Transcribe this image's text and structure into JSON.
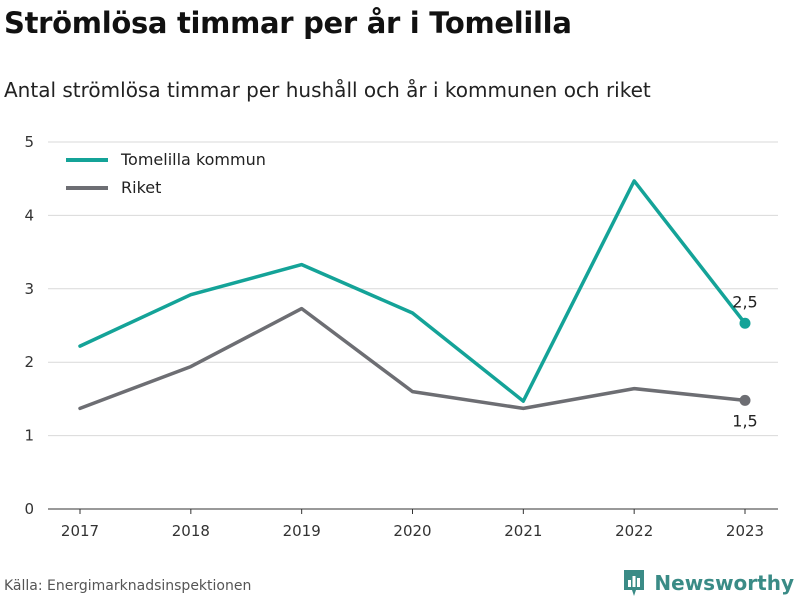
{
  "header": {
    "title": "Strömlösa timmar per år i Tomelilla",
    "subtitle": "Antal strömlösa timmar per hushåll och år i kommunen och riket"
  },
  "footer": {
    "source": "Källa: Energimarknadsinspektionen",
    "brand": "Newsworthy",
    "brand_icon": "bar-chart-logo-icon"
  },
  "colors": {
    "tomelilla": "#14a398",
    "riket": "#6d6e73",
    "grid": "#d9d9d9",
    "brand": "#3a8b86"
  },
  "chart_data": {
    "type": "line",
    "categories": [
      "2017",
      "2018",
      "2019",
      "2020",
      "2021",
      "2022",
      "2023"
    ],
    "series": [
      {
        "name": "Tomelilla kommun",
        "values": [
          2.22,
          2.92,
          3.33,
          2.67,
          1.47,
          4.47,
          2.53
        ],
        "end_label": "2,5"
      },
      {
        "name": "Riket",
        "values": [
          1.37,
          1.94,
          2.73,
          1.6,
          1.37,
          1.64,
          1.48
        ],
        "end_label": "1,5"
      }
    ],
    "ylim": [
      0,
      5
    ],
    "yticks": [
      "0",
      "1",
      "2",
      "3",
      "4",
      "5"
    ],
    "grid": true,
    "legend_position": "top-left"
  }
}
